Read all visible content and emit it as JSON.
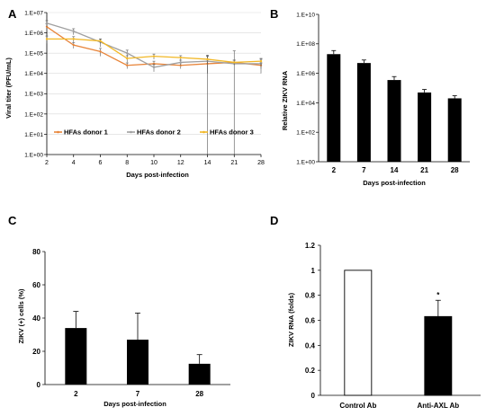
{
  "panels": {
    "a": {
      "letter": "A"
    },
    "b": {
      "letter": "B"
    },
    "c": {
      "letter": "C"
    },
    "d": {
      "letter": "D"
    }
  },
  "chart_data": [
    {
      "panel": "A",
      "type": "line",
      "xlabel": "Days post-infection",
      "ylabel": "Viral titer (PFU/mL)",
      "y_scale": "log",
      "ylim": [
        1,
        10000000
      ],
      "x": [
        "2",
        "4",
        "6",
        "8",
        "10",
        "12",
        "14",
        "21",
        "28"
      ],
      "yticks": [
        "1.E+00",
        "1.E+01",
        "1.E+02",
        "1.E+03",
        "1.E+04",
        "1.E+05",
        "1.E+06",
        "1.E+07"
      ],
      "series": [
        {
          "name": "HFAs donor 1",
          "color": "#e8853a",
          "values": [
            2000000,
            250000,
            120000,
            25000,
            30000,
            25000,
            30000,
            35000,
            25000
          ],
          "err": [
            800000,
            80000,
            50000,
            8000,
            10000,
            8000,
            50000,
            10000,
            8000
          ]
        },
        {
          "name": "HFAs donor 2",
          "color": "#a0a0a0",
          "values": [
            3000000,
            1200000,
            350000,
            100000,
            20000,
            35000,
            40000,
            30000,
            30000
          ],
          "err": [
            1000000,
            400000,
            150000,
            40000,
            8000,
            10000,
            30000,
            100000,
            20000
          ]
        },
        {
          "name": "HFAs donor 3",
          "color": "#f2b826",
          "values": [
            500000,
            500000,
            400000,
            55000,
            70000,
            60000,
            50000,
            35000,
            40000
          ],
          "err": [
            200000,
            150000,
            100000,
            20000,
            20000,
            15000,
            20000,
            10000,
            15000
          ]
        }
      ],
      "legend_position": "bottom-left"
    },
    {
      "panel": "B",
      "type": "bar",
      "xlabel": "Days post-infection",
      "ylabel": "Relative ZIKV RNA",
      "y_scale": "log",
      "ylim": [
        1,
        10000000000
      ],
      "categories": [
        "2",
        "7",
        "14",
        "21",
        "28"
      ],
      "yticks": [
        "1.E+00",
        "1.E+02",
        "1.E+04",
        "1.E+06",
        "1.E+08",
        "1.E+10"
      ],
      "values": [
        20000000,
        5000000,
        350000,
        50000,
        20000
      ],
      "err": [
        15000000,
        3000000,
        250000,
        30000,
        10000
      ],
      "color": "#000000"
    },
    {
      "panel": "C",
      "type": "bar",
      "xlabel": "Days post-infection",
      "ylabel": "ZIKV (+) cells (%)",
      "ylim": [
        0,
        80
      ],
      "categories": [
        "2",
        "7",
        "28"
      ],
      "yticks": [
        "0",
        "20",
        "40",
        "60",
        "80"
      ],
      "values": [
        34,
        27,
        12.5
      ],
      "err": [
        10,
        16,
        5.5
      ],
      "color": "#000000"
    },
    {
      "panel": "D",
      "type": "bar",
      "xlabel": "",
      "ylabel": "ZIKV RNA (folds)",
      "ylim": [
        0,
        1.2
      ],
      "categories": [
        "Control Ab",
        "Anti-AXL Ab"
      ],
      "yticks": [
        "0",
        "0.2",
        "0.4",
        "0.6",
        "0.8",
        "1",
        "1.2"
      ],
      "values": [
        1.0,
        0.63
      ],
      "err": [
        0,
        0.13
      ],
      "fills": [
        "#ffffff",
        "#000000"
      ],
      "annotations": [
        {
          "category": "Anti-AXL Ab",
          "text": "*"
        }
      ]
    }
  ]
}
